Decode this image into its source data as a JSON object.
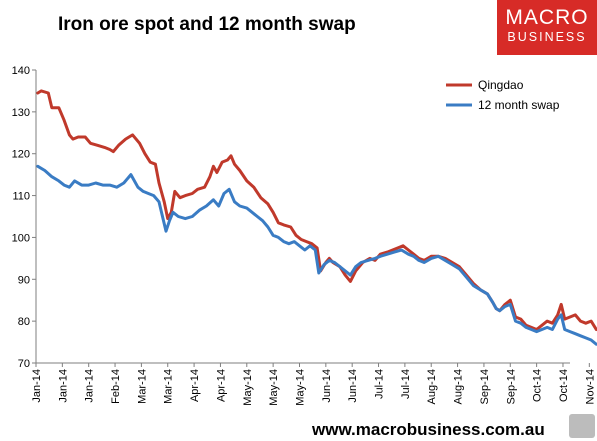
{
  "title": "Iron ore spot and 12 month swap",
  "logo": {
    "line1": "MACRO",
    "line2": "BUSINESS"
  },
  "footer_url": "www.macrobusiness.com.au",
  "colors": {
    "qingdao": "#c0392b",
    "swap": "#3a7cc4"
  },
  "chart_data": {
    "type": "line",
    "title": "Iron ore spot and 12 month swap",
    "xlabel": "",
    "ylabel": "",
    "ylim": [
      70,
      140
    ],
    "yticks": [
      "70",
      "80",
      "90",
      "100",
      "110",
      "120",
      "130",
      "140"
    ],
    "xlim": [
      "2014-01-01",
      "2014-11-01"
    ],
    "xticks": [
      {
        "label": "Jan-14",
        "date": "2014-01-01"
      },
      {
        "label": "Jan-14",
        "date": "2014-01-16"
      },
      {
        "label": "Jan-14",
        "date": "2014-01-31"
      },
      {
        "label": "Feb-14",
        "date": "2014-02-15"
      },
      {
        "label": "Mar-14",
        "date": "2014-03-02"
      },
      {
        "label": "Mar-14",
        "date": "2014-03-17"
      },
      {
        "label": "Apr-14",
        "date": "2014-04-01"
      },
      {
        "label": "Apr-14",
        "date": "2014-04-16"
      },
      {
        "label": "May-14",
        "date": "2014-05-01"
      },
      {
        "label": "May-14",
        "date": "2014-05-16"
      },
      {
        "label": "May-14",
        "date": "2014-05-31"
      },
      {
        "label": "Jun-14",
        "date": "2014-06-15"
      },
      {
        "label": "Jun-14",
        "date": "2014-06-30"
      },
      {
        "label": "Jul-14",
        "date": "2014-07-15"
      },
      {
        "label": "Jul-14",
        "date": "2014-07-30"
      },
      {
        "label": "Aug-14",
        "date": "2014-08-14"
      },
      {
        "label": "Aug-14",
        "date": "2014-08-29"
      },
      {
        "label": "Sep-14",
        "date": "2014-09-13"
      },
      {
        "label": "Sep-14",
        "date": "2014-09-28"
      },
      {
        "label": "Oct-14",
        "date": "2014-10-13"
      },
      {
        "label": "Oct-14",
        "date": "2014-10-28"
      },
      {
        "label": "Nov-14",
        "date": "2014-11-12"
      }
    ],
    "grid": false,
    "legend": "top-right",
    "series": [
      {
        "name": "Qingdao",
        "points": [
          [
            "2014-01-02",
            134.5
          ],
          [
            "2014-01-04",
            135.0
          ],
          [
            "2014-01-08",
            134.5
          ],
          [
            "2014-01-10",
            131.0
          ],
          [
            "2014-01-14",
            131.0
          ],
          [
            "2014-01-17",
            128.0
          ],
          [
            "2014-01-20",
            124.5
          ],
          [
            "2014-01-22",
            123.5
          ],
          [
            "2014-01-25",
            124.0
          ],
          [
            "2014-01-29",
            124.0
          ],
          [
            "2014-02-01",
            122.5
          ],
          [
            "2014-02-05",
            122.0
          ],
          [
            "2014-02-09",
            121.5
          ],
          [
            "2014-02-12",
            121.0
          ],
          [
            "2014-02-14",
            120.5
          ],
          [
            "2014-02-17",
            122.0
          ],
          [
            "2014-02-21",
            123.5
          ],
          [
            "2014-02-25",
            124.5
          ],
          [
            "2014-03-01",
            122.5
          ],
          [
            "2014-03-04",
            120.0
          ],
          [
            "2014-03-07",
            118.0
          ],
          [
            "2014-03-10",
            117.5
          ],
          [
            "2014-03-12",
            113.0
          ],
          [
            "2014-03-15",
            108.5
          ],
          [
            "2014-03-17",
            104.5
          ],
          [
            "2014-03-19",
            106.0
          ],
          [
            "2014-03-21",
            111.0
          ],
          [
            "2014-03-24",
            109.5
          ],
          [
            "2014-03-27",
            110.0
          ],
          [
            "2014-03-31",
            110.5
          ],
          [
            "2014-04-03",
            111.5
          ],
          [
            "2014-04-07",
            112.0
          ],
          [
            "2014-04-10",
            114.5
          ],
          [
            "2014-04-12",
            117.0
          ],
          [
            "2014-04-14",
            115.5
          ],
          [
            "2014-04-17",
            118.0
          ],
          [
            "2014-04-20",
            118.5
          ],
          [
            "2014-04-22",
            119.5
          ],
          [
            "2014-04-24",
            117.5
          ],
          [
            "2014-04-27",
            116.0
          ],
          [
            "2014-05-01",
            113.5
          ],
          [
            "2014-05-05",
            112.0
          ],
          [
            "2014-05-09",
            109.5
          ],
          [
            "2014-05-13",
            108.0
          ],
          [
            "2014-05-16",
            106.0
          ],
          [
            "2014-05-19",
            103.5
          ],
          [
            "2014-05-22",
            103.0
          ],
          [
            "2014-05-26",
            102.5
          ],
          [
            "2014-05-29",
            100.5
          ],
          [
            "2014-06-01",
            99.5
          ],
          [
            "2014-06-04",
            99.0
          ],
          [
            "2014-06-07",
            98.5
          ],
          [
            "2014-06-10",
            97.5
          ],
          [
            "2014-06-12",
            92.0
          ],
          [
            "2014-06-15",
            94.0
          ],
          [
            "2014-06-17",
            95.0
          ],
          [
            "2014-06-19",
            94.0
          ],
          [
            "2014-06-23",
            93.0
          ],
          [
            "2014-06-26",
            91.0
          ],
          [
            "2014-06-29",
            89.5
          ],
          [
            "2014-07-02",
            92.0
          ],
          [
            "2014-07-06",
            94.0
          ],
          [
            "2014-07-10",
            95.0
          ],
          [
            "2014-07-13",
            94.5
          ],
          [
            "2014-07-16",
            96.0
          ],
          [
            "2014-07-20",
            96.5
          ],
          [
            "2014-07-23",
            97.0
          ],
          [
            "2014-07-26",
            97.5
          ],
          [
            "2014-07-29",
            98.0
          ],
          [
            "2014-08-01",
            97.0
          ],
          [
            "2014-08-04",
            96.0
          ],
          [
            "2014-08-07",
            95.0
          ],
          [
            "2014-08-10",
            94.5
          ],
          [
            "2014-08-14",
            95.5
          ],
          [
            "2014-08-18",
            95.5
          ],
          [
            "2014-08-22",
            95.0
          ],
          [
            "2014-08-26",
            94.0
          ],
          [
            "2014-08-30",
            93.0
          ],
          [
            "2014-09-03",
            91.0
          ],
          [
            "2014-09-07",
            89.0
          ],
          [
            "2014-09-11",
            87.5
          ],
          [
            "2014-09-15",
            86.5
          ],
          [
            "2014-09-18",
            84.5
          ],
          [
            "2014-09-20",
            83.0
          ],
          [
            "2014-09-22",
            82.5
          ],
          [
            "2014-09-25",
            84.0
          ],
          [
            "2014-09-28",
            85.0
          ],
          [
            "2014-10-01",
            81.0
          ],
          [
            "2014-10-04",
            80.5
          ],
          [
            "2014-10-07",
            79.0
          ],
          [
            "2014-10-10",
            78.5
          ],
          [
            "2014-10-13",
            78.0
          ],
          [
            "2014-10-16",
            79.0
          ],
          [
            "2014-10-19",
            80.0
          ],
          [
            "2014-10-22",
            79.5
          ],
          [
            "2014-10-25",
            81.5
          ],
          [
            "2014-10-27",
            84.0
          ],
          [
            "2014-10-29",
            80.5
          ],
          [
            "2014-11-01",
            81.0
          ],
          [
            "2014-11-04",
            81.5
          ],
          [
            "2014-11-07",
            80.0
          ],
          [
            "2014-11-10",
            79.5
          ],
          [
            "2014-11-13",
            80.0
          ],
          [
            "2014-11-16",
            78.0
          ]
        ]
      },
      {
        "name": "12 month swap",
        "points": [
          [
            "2014-01-02",
            117.0
          ],
          [
            "2014-01-06",
            116.0
          ],
          [
            "2014-01-10",
            114.5
          ],
          [
            "2014-01-14",
            113.5
          ],
          [
            "2014-01-17",
            112.5
          ],
          [
            "2014-01-20",
            112.0
          ],
          [
            "2014-01-23",
            113.5
          ],
          [
            "2014-01-27",
            112.5
          ],
          [
            "2014-01-31",
            112.5
          ],
          [
            "2014-02-04",
            113.0
          ],
          [
            "2014-02-08",
            112.5
          ],
          [
            "2014-02-12",
            112.5
          ],
          [
            "2014-02-16",
            112.0
          ],
          [
            "2014-02-20",
            113.0
          ],
          [
            "2014-02-24",
            115.0
          ],
          [
            "2014-02-28",
            112.0
          ],
          [
            "2014-03-03",
            111.0
          ],
          [
            "2014-03-06",
            110.5
          ],
          [
            "2014-03-09",
            110.0
          ],
          [
            "2014-03-12",
            108.5
          ],
          [
            "2014-03-14",
            105.0
          ],
          [
            "2014-03-16",
            101.5
          ],
          [
            "2014-03-18",
            104.0
          ],
          [
            "2014-03-20",
            106.0
          ],
          [
            "2014-03-23",
            105.0
          ],
          [
            "2014-03-27",
            104.5
          ],
          [
            "2014-03-31",
            105.0
          ],
          [
            "2014-04-04",
            106.5
          ],
          [
            "2014-04-08",
            107.5
          ],
          [
            "2014-04-12",
            109.0
          ],
          [
            "2014-04-15",
            107.5
          ],
          [
            "2014-04-18",
            110.5
          ],
          [
            "2014-04-21",
            111.5
          ],
          [
            "2014-04-24",
            108.5
          ],
          [
            "2014-04-27",
            107.5
          ],
          [
            "2014-05-01",
            107.0
          ],
          [
            "2014-05-04",
            106.0
          ],
          [
            "2014-05-07",
            105.0
          ],
          [
            "2014-05-10",
            104.0
          ],
          [
            "2014-05-13",
            102.5
          ],
          [
            "2014-05-16",
            100.5
          ],
          [
            "2014-05-19",
            100.0
          ],
          [
            "2014-05-22",
            99.0
          ],
          [
            "2014-05-25",
            98.5
          ],
          [
            "2014-05-28",
            99.0
          ],
          [
            "2014-05-31",
            98.0
          ],
          [
            "2014-06-03",
            97.0
          ],
          [
            "2014-06-06",
            98.0
          ],
          [
            "2014-06-09",
            97.0
          ],
          [
            "2014-06-11",
            91.5
          ],
          [
            "2014-06-14",
            93.5
          ],
          [
            "2014-06-17",
            94.5
          ],
          [
            "2014-06-20",
            94.0
          ],
          [
            "2014-06-23",
            93.0
          ],
          [
            "2014-06-26",
            92.0
          ],
          [
            "2014-06-29",
            91.0
          ],
          [
            "2014-07-02",
            93.0
          ],
          [
            "2014-07-05",
            94.0
          ],
          [
            "2014-07-09",
            94.5
          ],
          [
            "2014-07-13",
            95.0
          ],
          [
            "2014-07-16",
            95.5
          ],
          [
            "2014-07-20",
            96.0
          ],
          [
            "2014-07-24",
            96.5
          ],
          [
            "2014-07-28",
            97.0
          ],
          [
            "2014-08-01",
            96.0
          ],
          [
            "2014-08-04",
            95.5
          ],
          [
            "2014-08-07",
            94.5
          ],
          [
            "2014-08-10",
            94.0
          ],
          [
            "2014-08-14",
            95.0
          ],
          [
            "2014-08-18",
            95.5
          ],
          [
            "2014-08-22",
            94.5
          ],
          [
            "2014-08-26",
            93.5
          ],
          [
            "2014-08-30",
            92.5
          ],
          [
            "2014-09-03",
            90.5
          ],
          [
            "2014-09-07",
            88.5
          ],
          [
            "2014-09-11",
            87.5
          ],
          [
            "2014-09-15",
            86.5
          ],
          [
            "2014-09-18",
            84.5
          ],
          [
            "2014-09-20",
            83.0
          ],
          [
            "2014-09-22",
            82.5
          ],
          [
            "2014-09-25",
            83.5
          ],
          [
            "2014-09-28",
            84.0
          ],
          [
            "2014-10-01",
            80.0
          ],
          [
            "2014-10-04",
            79.5
          ],
          [
            "2014-10-07",
            78.5
          ],
          [
            "2014-10-10",
            78.0
          ],
          [
            "2014-10-13",
            77.5
          ],
          [
            "2014-10-16",
            78.0
          ],
          [
            "2014-10-19",
            78.5
          ],
          [
            "2014-10-22",
            78.0
          ],
          [
            "2014-10-25",
            80.5
          ],
          [
            "2014-10-27",
            81.5
          ],
          [
            "2014-10-29",
            78.0
          ],
          [
            "2014-11-01",
            77.5
          ],
          [
            "2014-11-04",
            77.0
          ],
          [
            "2014-11-07",
            76.5
          ],
          [
            "2014-11-10",
            76.0
          ],
          [
            "2014-11-13",
            75.5
          ],
          [
            "2014-11-16",
            74.5
          ]
        ]
      }
    ]
  }
}
